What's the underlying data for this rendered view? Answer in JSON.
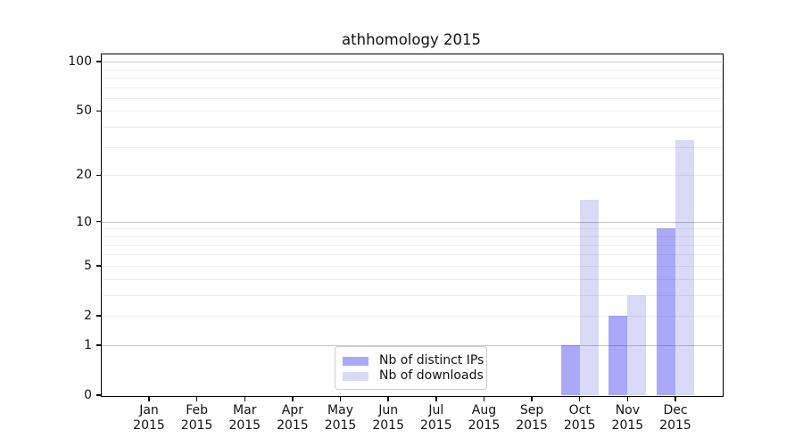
{
  "chart_data": {
    "type": "bar",
    "title": "athhomology 2015",
    "year": "2015",
    "categories": [
      "Jan",
      "Feb",
      "Mar",
      "Apr",
      "May",
      "Jun",
      "Jul",
      "Aug",
      "Sep",
      "Oct",
      "Nov",
      "Dec"
    ],
    "series": [
      {
        "name": "Nb of distinct IPs",
        "color": "#a9a9f8",
        "values": [
          0,
          0,
          0,
          0,
          0,
          0,
          0,
          0,
          0,
          1,
          2,
          9
        ]
      },
      {
        "name": "Nb of downloads",
        "color": "#d9d9f8",
        "values": [
          0,
          0,
          0,
          0,
          0,
          0,
          0,
          0,
          0,
          14,
          3,
          33
        ]
      }
    ],
    "y_axis": {
      "scale": "log1p",
      "ticks": [
        0,
        1,
        2,
        5,
        10,
        20,
        50,
        100
      ],
      "max": 112
    },
    "grid": {
      "major_values": [
        1,
        10,
        100
      ],
      "minor_values": [
        2,
        3,
        4,
        5,
        6,
        7,
        8,
        9,
        20,
        30,
        40,
        50,
        60,
        70,
        80,
        90
      ],
      "major_color": "rgba(0,0,0,0.22)",
      "minor_color": "rgba(0,0,0,0.07)"
    },
    "legend_position": "lower-center-inside",
    "axis_color": "#000000",
    "background_color": "#ffffff"
  }
}
